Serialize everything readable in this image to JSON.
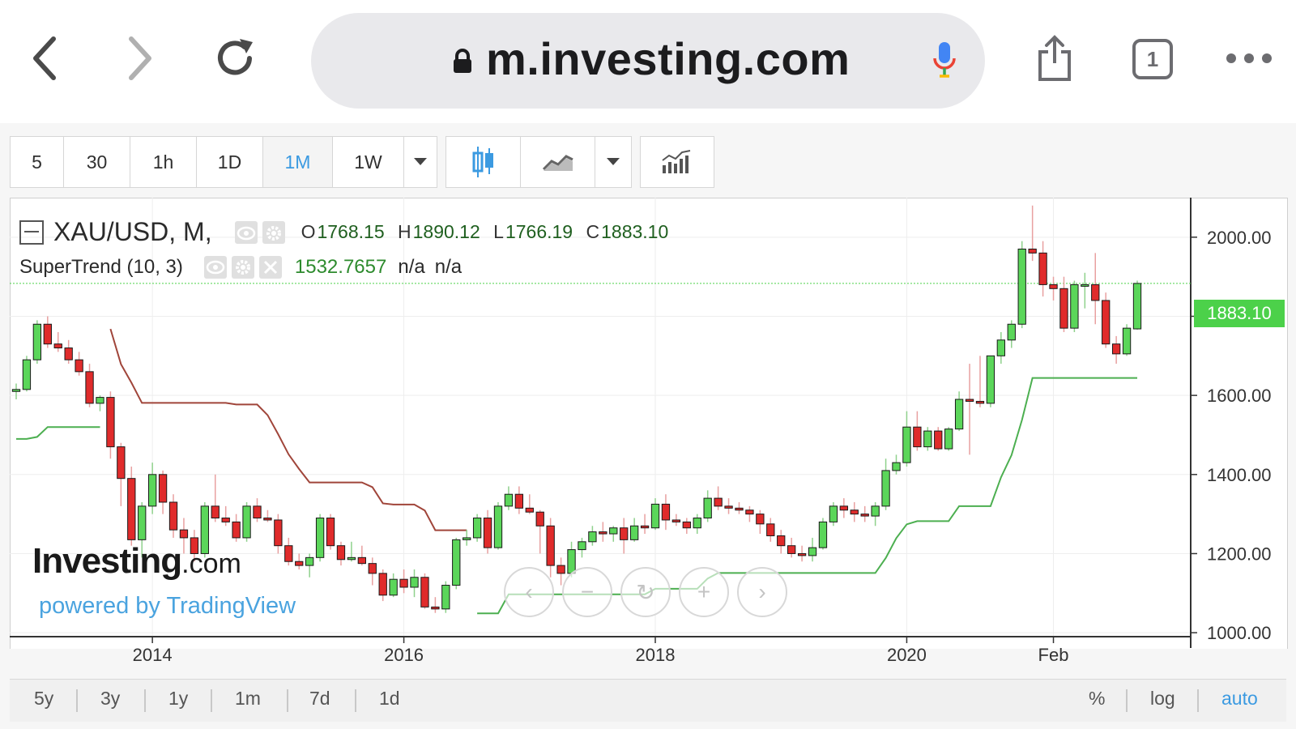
{
  "browser": {
    "url": "m.investing.com",
    "tab_count": "1"
  },
  "toolbar": {
    "intervals": [
      "5",
      "30",
      "1h",
      "1D",
      "1M",
      "1W"
    ],
    "active_interval": "1M"
  },
  "legend": {
    "symbol": "XAU/USD, M,",
    "open_label": "O",
    "open": "1768.15",
    "high_label": "H",
    "high": "1890.12",
    "low_label": "L",
    "low": "1766.19",
    "close_label": "C",
    "close": "1883.10",
    "indicator": "SuperTrend (10, 3)",
    "indicator_value": "1532.7657",
    "indicator_na1": "n/a",
    "indicator_na2": "n/a"
  },
  "watermark": {
    "brand": "Investing",
    "brand_suffix": ".com",
    "powered": "powered by TradingView"
  },
  "periods": [
    "5y",
    "3y",
    "1y",
    "1m",
    "7d",
    "1d"
  ],
  "scale_options": {
    "percent": "%",
    "log": "log",
    "auto": "auto"
  },
  "price_badge": "1883.10",
  "chart_data": {
    "type": "candlestick",
    "symbol": "XAU/USD",
    "timeframe": "M",
    "y_axis": {
      "ticks": [
        "2000.00",
        "1800.00",
        "1600.00",
        "1400.00",
        "1200.00",
        "1000.00"
      ],
      "range": [
        990,
        2100
      ]
    },
    "x_axis": {
      "ticks": [
        "2014",
        "2016",
        "2018",
        "2020",
        "Feb"
      ]
    },
    "candles": [
      [
        1610,
        1630,
        1590,
        1615
      ],
      [
        1615,
        1700,
        1610,
        1690
      ],
      [
        1690,
        1790,
        1680,
        1780
      ],
      [
        1780,
        1800,
        1720,
        1730
      ],
      [
        1730,
        1760,
        1710,
        1720
      ],
      [
        1720,
        1740,
        1680,
        1690
      ],
      [
        1690,
        1710,
        1650,
        1660
      ],
      [
        1660,
        1680,
        1570,
        1580
      ],
      [
        1580,
        1600,
        1560,
        1595
      ],
      [
        1595,
        1610,
        1440,
        1470
      ],
      [
        1470,
        1480,
        1320,
        1390
      ],
      [
        1390,
        1420,
        1220,
        1235
      ],
      [
        1235,
        1330,
        1190,
        1320
      ],
      [
        1320,
        1430,
        1300,
        1400
      ],
      [
        1400,
        1410,
        1300,
        1330
      ],
      [
        1330,
        1350,
        1240,
        1260
      ],
      [
        1260,
        1290,
        1200,
        1240
      ],
      [
        1240,
        1260,
        1180,
        1200
      ],
      [
        1200,
        1330,
        1190,
        1320
      ],
      [
        1320,
        1400,
        1280,
        1290
      ],
      [
        1290,
        1320,
        1270,
        1280
      ],
      [
        1280,
        1300,
        1230,
        1240
      ],
      [
        1240,
        1330,
        1230,
        1320
      ],
      [
        1320,
        1340,
        1280,
        1290
      ],
      [
        1290,
        1310,
        1280,
        1285
      ],
      [
        1285,
        1300,
        1200,
        1220
      ],
      [
        1220,
        1240,
        1170,
        1180
      ],
      [
        1180,
        1200,
        1160,
        1170
      ],
      [
        1170,
        1200,
        1140,
        1190
      ],
      [
        1190,
        1300,
        1180,
        1290
      ],
      [
        1290,
        1300,
        1210,
        1220
      ],
      [
        1220,
        1230,
        1170,
        1185
      ],
      [
        1185,
        1230,
        1180,
        1190
      ],
      [
        1190,
        1220,
        1170,
        1175
      ],
      [
        1175,
        1190,
        1120,
        1150
      ],
      [
        1150,
        1160,
        1080,
        1095
      ],
      [
        1095,
        1150,
        1090,
        1135
      ],
      [
        1135,
        1160,
        1100,
        1115
      ],
      [
        1115,
        1160,
        1090,
        1140
      ],
      [
        1140,
        1150,
        1060,
        1065
      ],
      [
        1065,
        1090,
        1050,
        1060
      ],
      [
        1060,
        1130,
        1050,
        1120
      ],
      [
        1120,
        1240,
        1110,
        1235
      ],
      [
        1235,
        1260,
        1220,
        1240
      ],
      [
        1240,
        1300,
        1230,
        1290
      ],
      [
        1290,
        1310,
        1200,
        1215
      ],
      [
        1215,
        1330,
        1210,
        1320
      ],
      [
        1320,
        1370,
        1310,
        1350
      ],
      [
        1350,
        1370,
        1300,
        1315
      ],
      [
        1315,
        1350,
        1300,
        1305
      ],
      [
        1305,
        1310,
        1200,
        1270
      ],
      [
        1270,
        1290,
        1140,
        1170
      ],
      [
        1170,
        1190,
        1120,
        1150
      ],
      [
        1150,
        1230,
        1140,
        1210
      ],
      [
        1210,
        1240,
        1190,
        1230
      ],
      [
        1230,
        1270,
        1220,
        1255
      ],
      [
        1255,
        1280,
        1230,
        1250
      ],
      [
        1250,
        1270,
        1230,
        1265
      ],
      [
        1265,
        1290,
        1200,
        1235
      ],
      [
        1235,
        1290,
        1230,
        1270
      ],
      [
        1270,
        1300,
        1250,
        1265
      ],
      [
        1265,
        1340,
        1260,
        1325
      ],
      [
        1325,
        1350,
        1260,
        1285
      ],
      [
        1285,
        1300,
        1270,
        1280
      ],
      [
        1280,
        1290,
        1250,
        1265
      ],
      [
        1265,
        1300,
        1250,
        1290
      ],
      [
        1290,
        1360,
        1280,
        1340
      ],
      [
        1340,
        1370,
        1310,
        1320
      ],
      [
        1320,
        1340,
        1300,
        1315
      ],
      [
        1315,
        1330,
        1300,
        1310
      ],
      [
        1310,
        1320,
        1280,
        1300
      ],
      [
        1300,
        1310,
        1250,
        1275
      ],
      [
        1275,
        1290,
        1230,
        1245
      ],
      [
        1245,
        1260,
        1200,
        1220
      ],
      [
        1220,
        1240,
        1190,
        1200
      ],
      [
        1200,
        1220,
        1180,
        1195
      ],
      [
        1195,
        1240,
        1180,
        1215
      ],
      [
        1215,
        1290,
        1210,
        1280
      ],
      [
        1280,
        1330,
        1270,
        1320
      ],
      [
        1320,
        1340,
        1290,
        1310
      ],
      [
        1310,
        1330,
        1280,
        1300
      ],
      [
        1300,
        1320,
        1280,
        1295
      ],
      [
        1295,
        1330,
        1270,
        1320
      ],
      [
        1320,
        1440,
        1310,
        1410
      ],
      [
        1410,
        1450,
        1400,
        1430
      ],
      [
        1430,
        1560,
        1420,
        1520
      ],
      [
        1520,
        1560,
        1460,
        1470
      ],
      [
        1470,
        1520,
        1460,
        1510
      ],
      [
        1510,
        1520,
        1460,
        1465
      ],
      [
        1465,
        1520,
        1460,
        1515
      ],
      [
        1515,
        1610,
        1510,
        1590
      ],
      [
        1590,
        1680,
        1450,
        1585
      ],
      [
        1585,
        1700,
        1570,
        1580
      ],
      [
        1580,
        1700,
        1570,
        1700
      ],
      [
        1700,
        1760,
        1680,
        1740
      ],
      [
        1740,
        1790,
        1720,
        1780
      ],
      [
        1780,
        1990,
        1770,
        1970
      ],
      [
        1970,
        2080,
        1940,
        1960
      ],
      [
        1960,
        1990,
        1850,
        1880
      ],
      [
        1880,
        1900,
        1840,
        1870
      ],
      [
        1870,
        1900,
        1760,
        1770
      ],
      [
        1770,
        1890,
        1760,
        1880
      ],
      [
        1880,
        1910,
        1820,
        1880
      ],
      [
        1880,
        1960,
        1780,
        1840
      ],
      [
        1840,
        1860,
        1720,
        1730
      ],
      [
        1730,
        1750,
        1680,
        1705
      ],
      [
        1705,
        1780,
        1700,
        1770
      ],
      [
        1768.15,
        1890.12,
        1766.19,
        1883.1
      ]
    ],
    "supertrend": {
      "name": "SuperTrend (10, 3)",
      "last_value": 1532.7657
    }
  }
}
